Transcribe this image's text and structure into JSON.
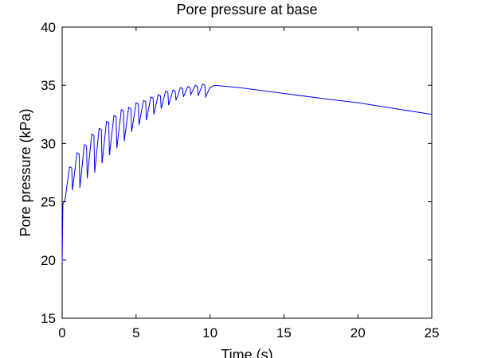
{
  "chart_data": {
    "type": "line",
    "title": "Pore pressure at base",
    "xlabel": "Time (s)",
    "ylabel": "Pore pressure (kPa)",
    "x": [
      0,
      0.05,
      0.2,
      0.5,
      0.65,
      0.7,
      1,
      1.15,
      1.2,
      1.5,
      1.65,
      1.7,
      2,
      2.15,
      2.2,
      2.5,
      2.65,
      2.7,
      3,
      3.15,
      3.2,
      3.5,
      3.65,
      3.7,
      4,
      4.15,
      4.2,
      4.5,
      4.65,
      4.7,
      5,
      5.15,
      5.2,
      5.5,
      5.65,
      5.7,
      6,
      6.15,
      6.2,
      6.5,
      6.65,
      6.7,
      7,
      7.15,
      7.2,
      7.5,
      7.65,
      7.7,
      8,
      8.15,
      8.2,
      8.5,
      8.65,
      8.7,
      9,
      9.15,
      9.2,
      9.5,
      9.65,
      9.7,
      10,
      10.3,
      12,
      15,
      18,
      20,
      22,
      25
    ],
    "series": [
      {
        "color": "#0000ff",
        "values": [
          19.8,
          24.8,
          25.2,
          28.0,
          27.9,
          26.0,
          29.2,
          29.1,
          26.2,
          29.9,
          29.8,
          27.0,
          30.8,
          30.7,
          27.5,
          31.3,
          31.2,
          28.3,
          31.9,
          31.8,
          29.0,
          32.4,
          32.3,
          29.6,
          32.9,
          32.8,
          30.2,
          33.1,
          33.0,
          31.0,
          33.5,
          33.4,
          31.6,
          33.7,
          33.6,
          32.0,
          34.0,
          33.9,
          32.5,
          34.2,
          34.1,
          33.0,
          34.5,
          34.4,
          33.3,
          34.6,
          34.5,
          33.7,
          34.8,
          34.7,
          34.0,
          34.9,
          34.8,
          34.2,
          35.0,
          34.9,
          34.1,
          35.1,
          35.0,
          34.0,
          34.8,
          35.0,
          34.8,
          34.3,
          33.8,
          33.5,
          33.1,
          32.5
        ]
      }
    ],
    "xlim": [
      0,
      25
    ],
    "xticks": [
      0,
      5,
      10,
      15,
      20,
      25
    ],
    "ylim": [
      15,
      40
    ],
    "yticks": [
      15,
      20,
      25,
      30,
      35,
      40
    ]
  }
}
